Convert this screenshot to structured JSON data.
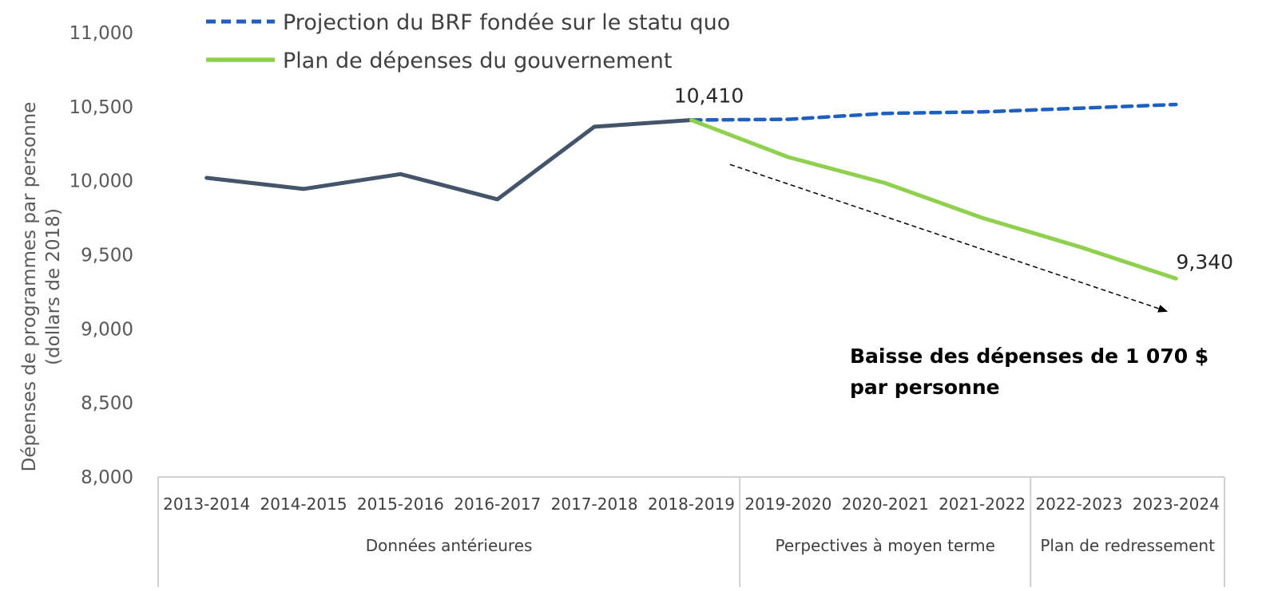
{
  "chart_data": {
    "type": "line",
    "ylabel_lines": [
      "Dépenses de programmes par personne",
      "(dollars de 2018)"
    ],
    "ylim": [
      8000,
      11000
    ],
    "yticks": [
      8000,
      8500,
      9000,
      9500,
      10000,
      10500,
      11000
    ],
    "ytick_labels": [
      "8,000",
      "8,500",
      "9,000",
      "9,500",
      "10,000",
      "10,500",
      "11,000"
    ],
    "categories": [
      "2013-2014",
      "2014-2015",
      "2015-2016",
      "2016-2017",
      "2017-2018",
      "2018-2019",
      "2019-2020",
      "2020-2021",
      "2021-2022",
      "2022-2023",
      "2023-2024"
    ],
    "groups": [
      {
        "label": "Données antérieures",
        "start": 0,
        "end": 5
      },
      {
        "label": "Perpectives à moyen terme",
        "start": 6,
        "end": 8
      },
      {
        "label": "Plan de redressement",
        "start": 9,
        "end": 10
      }
    ],
    "series": [
      {
        "key": "historical",
        "color": "#44546a",
        "style": "solid",
        "values": [
          10020,
          9945,
          10045,
          9875,
          10365,
          10410,
          null,
          null,
          null,
          null,
          null
        ]
      },
      {
        "key": "status_quo",
        "name": "Projection du BRF fondée sur le statu quo",
        "color": "#1f5fbf",
        "style": "dashed",
        "values": [
          null,
          null,
          null,
          null,
          null,
          10410,
          10415,
          10455,
          10465,
          10490,
          10515
        ]
      },
      {
        "key": "government_plan",
        "name": "Plan de dépenses du gouvernement",
        "color": "#8fd14f",
        "style": "solid",
        "values": [
          null,
          null,
          null,
          null,
          null,
          10410,
          10160,
          9985,
          9750,
          9555,
          9340
        ]
      }
    ],
    "data_labels": [
      {
        "text": "10,410",
        "x_index": 5,
        "value": 10410
      },
      {
        "text": "9,340",
        "x_index": 10,
        "value": 9340
      }
    ],
    "annotation": {
      "lines": [
        "Baisse des dépenses de 1 070 $",
        "par personne"
      ],
      "arrow_from": {
        "x_index": 5.4,
        "value": 10110
      },
      "arrow_to": {
        "x_index": 9.9,
        "value": 9120
      }
    },
    "legend_position": "top-left",
    "grid": false
  }
}
